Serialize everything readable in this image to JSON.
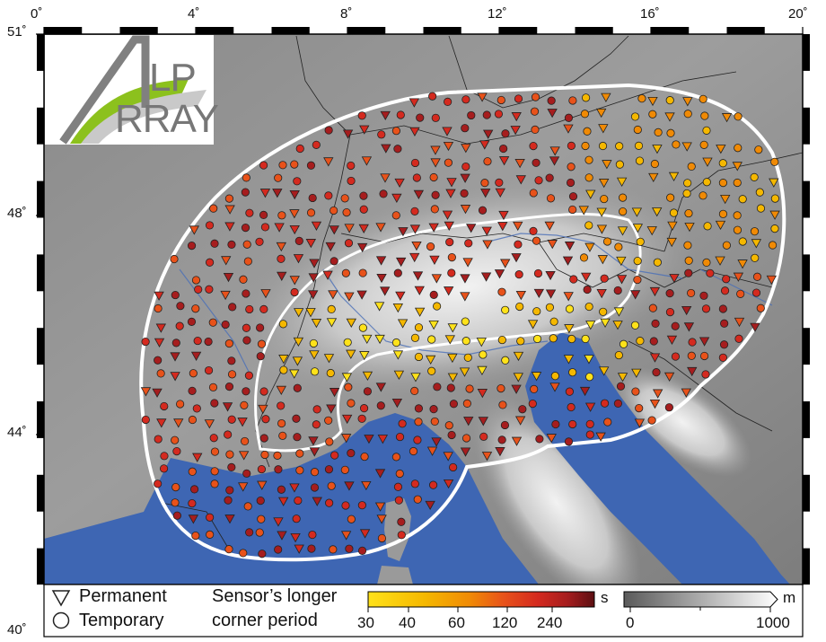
{
  "axes": {
    "longitude_labels": [
      "0˚",
      "4˚",
      "8˚",
      "12˚",
      "16˚",
      "20˚"
    ],
    "latitude_labels": [
      "51˚",
      "48˚",
      "44˚",
      "40˚"
    ]
  },
  "logo": {
    "line1": "LP",
    "line2": "RRAY"
  },
  "legend": {
    "permanent_label": "Permanent",
    "temporary_label": "Temporary",
    "period_title_line1": "Sensor’s longer",
    "period_title_line2": "corner period",
    "period_unit": "s",
    "period_ticks": [
      "30",
      "40",
      "60",
      "120",
      "240"
    ],
    "elevation_unit": "m",
    "elevation_ticks": [
      "0",
      "1000"
    ]
  },
  "colors": {
    "sea": "#3e66b3",
    "station_palette": [
      "#ffe21a",
      "#f5b800",
      "#f08a05",
      "#e8521a",
      "#d42a1f",
      "#a61d1e",
      "#5c0f12"
    ],
    "footprint_outline": "#ffffff",
    "logo_green": "#8cc11d",
    "logo_grey": "#808080"
  },
  "stations": {
    "permanent_symbol": "inverted-triangle",
    "temporary_symbol": "circle"
  }
}
